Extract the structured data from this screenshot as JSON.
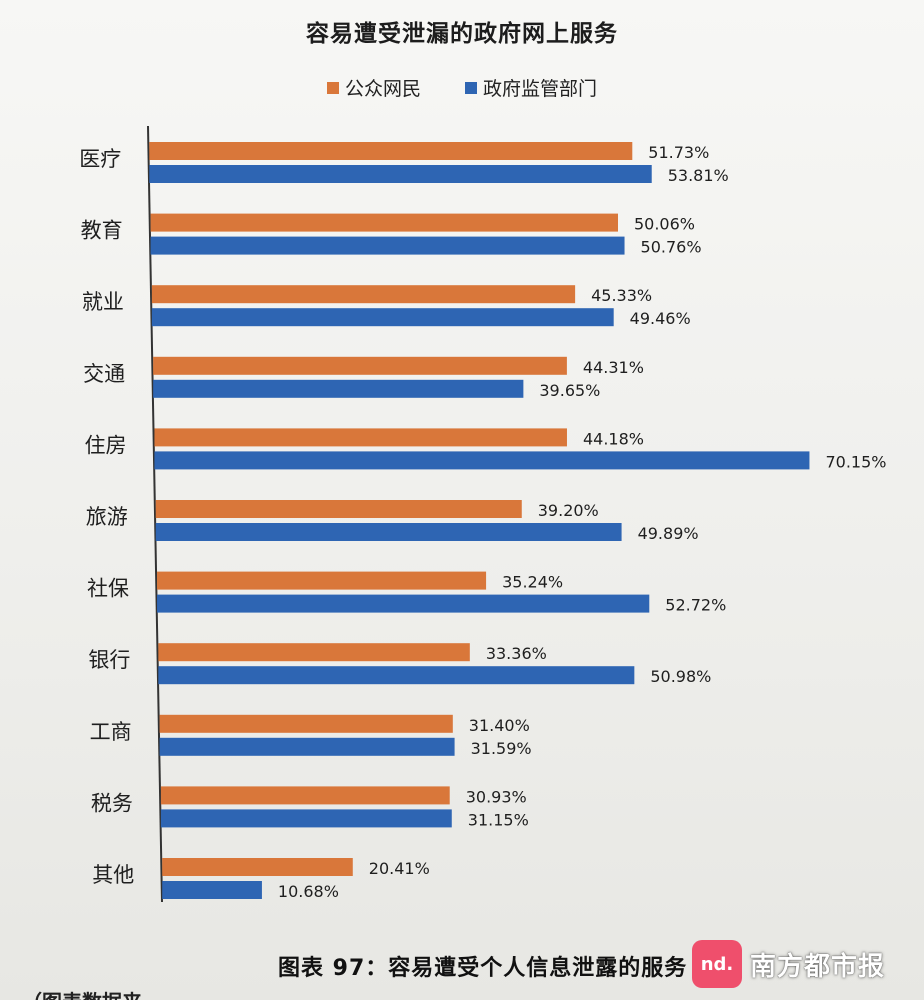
{
  "chart_data": {
    "type": "bar",
    "orientation": "horizontal",
    "title": "容易遭受泄漏的政府网上服务",
    "categories": [
      "医疗",
      "教育",
      "就业",
      "交通",
      "住房",
      "旅游",
      "社保",
      "银行",
      "工商",
      "税务",
      "其他"
    ],
    "series": [
      {
        "name": "公众网民",
        "color": "#d9773a",
        "values": [
          51.73,
          50.06,
          45.33,
          44.31,
          44.18,
          39.2,
          35.24,
          33.36,
          31.4,
          30.93,
          20.41
        ],
        "labels": [
          "51.73%",
          "50.06%",
          "45.33%",
          "44.31%",
          "44.18%",
          "39.20%",
          "35.24%",
          "33.36%",
          "31.40%",
          "30.93%",
          "20.41%"
        ]
      },
      {
        "name": "政府监管部门",
        "color": "#2e65b3",
        "values": [
          53.81,
          50.76,
          49.46,
          39.65,
          70.15,
          49.89,
          52.72,
          50.98,
          31.59,
          31.15,
          10.68
        ],
        "labels": [
          "53.81%",
          "50.76%",
          "49.46%",
          "39.65%",
          "70.15%",
          "49.89%",
          "52.72%",
          "50.98%",
          "31.59%",
          "31.15%",
          "10.68%"
        ]
      }
    ],
    "value_unit": "%",
    "legend_position": "top-center",
    "grid": false,
    "xlim": [
      0,
      70.15
    ]
  },
  "caption": "图表 97：容易遭受个人信息泄露的服务",
  "caption_note": "（图表数据来",
  "watermark": {
    "logo_text": "nd.",
    "text": "南方都市报"
  }
}
